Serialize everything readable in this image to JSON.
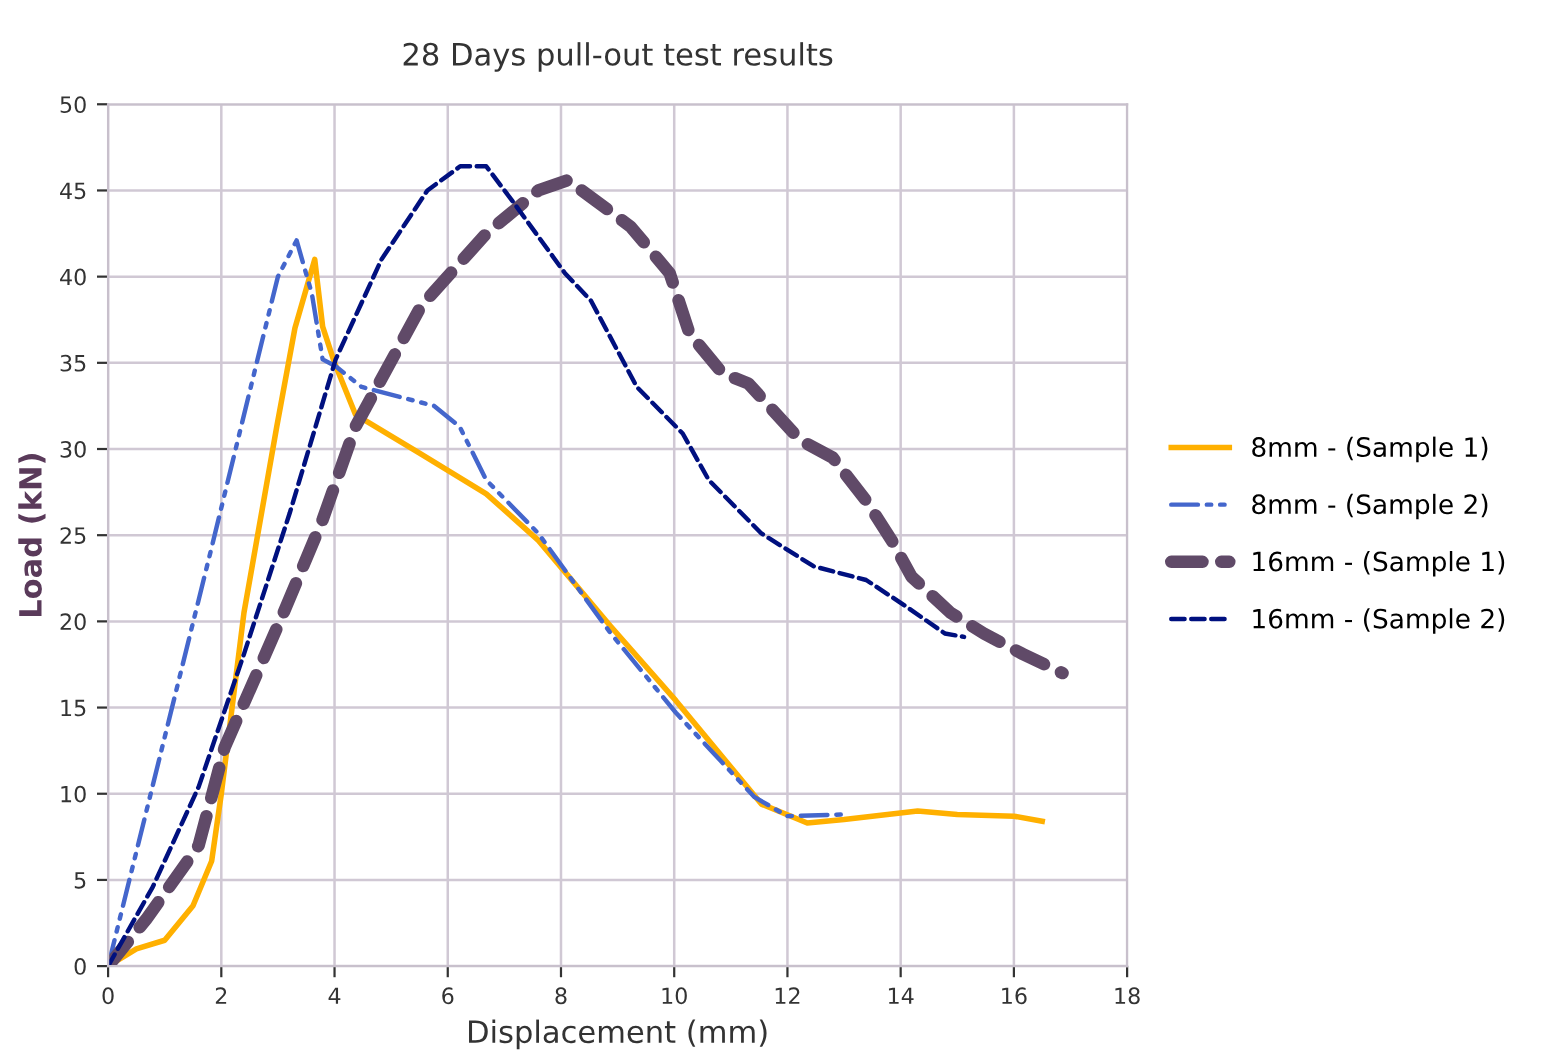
{
  "chart_data": {
    "type": "line",
    "title": "28 Days pull-out test results",
    "xlabel": "Displacement (mm)",
    "ylabel": "Load (kN)",
    "xlim": [
      0,
      18
    ],
    "ylim": [
      0,
      50
    ],
    "xticks": [
      0,
      2,
      4,
      6,
      8,
      10,
      12,
      14,
      16,
      18
    ],
    "yticks": [
      0,
      5,
      10,
      15,
      20,
      25,
      30,
      35,
      40,
      45,
      50
    ],
    "grid": true,
    "legend": "right",
    "marker": "none",
    "series": [
      {
        "name": "8mm - (Sample 1)",
        "color": "#ffb000",
        "line_style": "solid",
        "x": [
          0,
          0.5,
          1,
          1.5,
          1.83,
          2.0,
          2.4,
          2.98,
          3.3,
          3.65,
          3.79,
          4.0,
          4.37,
          5.53,
          6.68,
          7.6,
          8.88,
          10.03,
          11.54,
          12.35,
          13.0,
          14.3,
          15.0,
          16.0,
          16.5
        ],
        "values": [
          0,
          1,
          1.5,
          3.5,
          6.1,
          10,
          20.5,
          31.3,
          37,
          41,
          37.1,
          35,
          32,
          29.7,
          27.4,
          24.7,
          19.7,
          15.4,
          9.4,
          8.3,
          8.5,
          9.0,
          8.8,
          8.7,
          8.4
        ]
      },
      {
        "name": "8mm - (Sample 2)",
        "color": "#4466cc",
        "line_style": "dashdot",
        "x": [
          0,
          0.67,
          1.83,
          2.64,
          3.0,
          3.33,
          3.6,
          3.79,
          4.02,
          4.48,
          5.76,
          6.21,
          6.68,
          7.6,
          8.88,
          10.03,
          11.42,
          12.0,
          13.04
        ],
        "values": [
          0,
          8.9,
          24.3,
          35.2,
          40,
          42.1,
          39,
          35.2,
          34.8,
          33.6,
          32.5,
          31.3,
          28.2,
          25.1,
          19.3,
          14.7,
          9.8,
          8.7,
          8.8
        ]
      },
      {
        "name": "16mm - (Sample 1)",
        "color": "#604a68",
        "line_style": "thickdash",
        "x": [
          0,
          0.67,
          1.6,
          2.06,
          3.1,
          3.79,
          4.37,
          5.53,
          6.68,
          7.6,
          8.12,
          9.23,
          9.92,
          10.27,
          10.85,
          11.31,
          12.23,
          12.8,
          13.39,
          13.84,
          14.19,
          14.88,
          15.47,
          16.16,
          16.86
        ],
        "values": [
          0,
          2.7,
          7,
          12.7,
          20.5,
          25.9,
          31.3,
          38.3,
          42.5,
          45.0,
          45.6,
          42.9,
          40.2,
          36.7,
          34.4,
          33.8,
          30.5,
          29.5,
          27.0,
          24.7,
          22.6,
          20.5,
          19.3,
          18.1,
          17.0
        ]
      },
      {
        "name": "16mm - (Sample 2)",
        "color": "#00107f",
        "line_style": "dashed",
        "x": [
          0,
          0.79,
          1.6,
          2.4,
          3.21,
          4.02,
          4.83,
          5.64,
          6.22,
          6.68,
          7.14,
          8.07,
          8.53,
          9.34,
          10.15,
          10.61,
          11.54,
          12.46,
          13.39,
          14.08,
          14.78,
          15.12
        ],
        "values": [
          0,
          4.6,
          10.4,
          18.1,
          26.3,
          35.2,
          41,
          45,
          46.4,
          46.4,
          44.4,
          40.2,
          38.6,
          33.6,
          30.9,
          28.2,
          25.1,
          23.2,
          22.4,
          20.9,
          19.3,
          19.1
        ]
      }
    ]
  }
}
